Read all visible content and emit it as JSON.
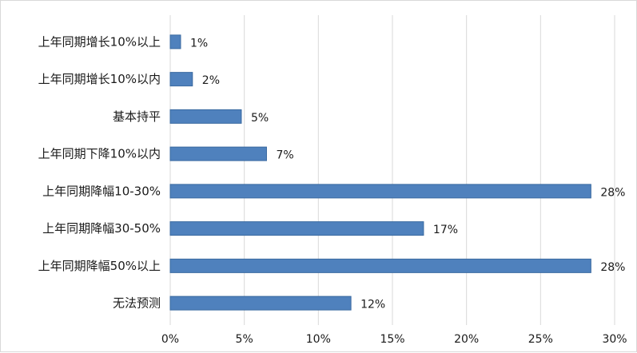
{
  "chart_data": {
    "type": "bar",
    "orientation": "horizontal",
    "categories": [
      "上年同期增长10%以上",
      "上年同期增长10%以内",
      "基本持平",
      "上年同期下降10%以内",
      "上年同期降幅10-30%",
      "上年同期降幅30-50%",
      "上年同期降幅50%以上",
      "无法预测"
    ],
    "values": [
      0.7,
      1.5,
      4.8,
      6.5,
      28.4,
      17.1,
      28.4,
      12.2
    ],
    "data_labels": [
      "1%",
      "2%",
      "5%",
      "7%",
      "28%",
      "17%",
      "28%",
      "12%"
    ],
    "xlim": [
      0,
      30
    ],
    "x_ticks": [
      0,
      5,
      10,
      15,
      20,
      25,
      30
    ],
    "x_tick_labels": [
      "0%",
      "5%",
      "10%",
      "15%",
      "20%",
      "25%",
      "30%"
    ],
    "title": "",
    "xlabel": "",
    "ylabel": "",
    "grid": "vertical",
    "legend": "none",
    "colors": {
      "bar_fill": "#4f81bd",
      "bar_stroke": "#3a6aa0",
      "grid": "#d9d9d9",
      "text": "#1a1a1a"
    }
  }
}
